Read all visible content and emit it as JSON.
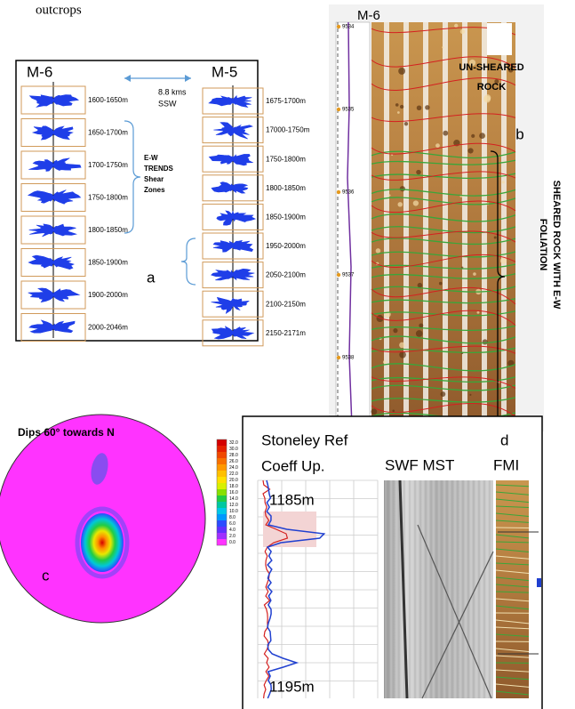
{
  "header": {
    "caption": "outcrops"
  },
  "panel_a": {
    "label": "a",
    "left_well": "M-6",
    "right_well": "M-5",
    "distance": [
      "8.8 kms",
      "SSW"
    ],
    "note": [
      "E-W",
      "TRENDS",
      "Shear",
      "Zones"
    ],
    "left_depths": [
      "1600-1650m",
      "1650-1700m",
      "1700-1750m",
      "1750-1800m",
      "1800-1850m",
      "1850-1900m",
      "1900-2000m",
      "2000-2046m"
    ],
    "right_depths": [
      "1675-1700m",
      "17000-1750m",
      "1750-1800m",
      "1800-1850m",
      "1850-1900m",
      "1950-2000m",
      "2050-2100m",
      "2100-2150m",
      "2150-2171m"
    ]
  },
  "panel_b": {
    "label": "b",
    "well": "M-6",
    "depth_marks": [
      "9534",
      "9535",
      "9536",
      "9537",
      "9538"
    ],
    "unsheared": [
      "UN-SHEARED",
      "ROCK"
    ],
    "sheared": [
      "SHEARED ROCK WITH E-W",
      "FOLIATION"
    ]
  },
  "panel_c": {
    "label": "c",
    "title": "Dips 60° towards N",
    "scale": [
      "32.0",
      "30.0",
      "28.0",
      "26.0",
      "24.0",
      "22.0",
      "20.0",
      "18.0",
      "16.0",
      "14.0",
      "12.0",
      "10.0",
      "8.0",
      "6.0",
      "4.0",
      "2.0",
      "0.0"
    ]
  },
  "panel_d": {
    "label": "d",
    "title": [
      "Stoneley Ref",
      "Coeff Up."
    ],
    "tracks": [
      "SWF MST",
      "FMI"
    ],
    "depths": [
      "1185m",
      "1195m"
    ]
  }
}
